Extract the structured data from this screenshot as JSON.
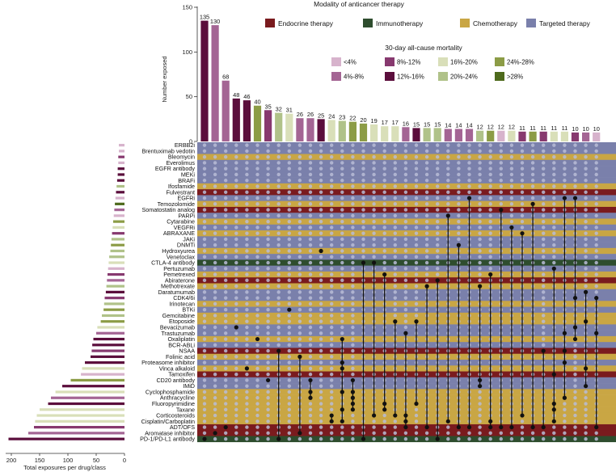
{
  "chart_data": {
    "type": "upset",
    "legend_title": "Modality of anticancer therapy",
    "mortality_title": "30-day all-cause mortality",
    "y_label": "Number exposed",
    "x_label": "Total exposures per drug/class",
    "y_ticks": [
      0,
      50,
      100,
      150
    ],
    "x_ticks": [
      200,
      150,
      100,
      50,
      0
    ],
    "colors": {
      "Endocrine therapy": "#7a1b1e",
      "Immunotherapy": "#2e4d2e",
      "Chemotherapy": "#c9a644",
      "Targeted therapy": "#7a80ab",
      "<4%": "#d7b3cc",
      "4%-8%": "#a46594",
      "8%-12%": "#87396f",
      "12%-16%": "#5b0e3c",
      "16%-20%": "#d9dfb9",
      "20%-24%": "#b0c289",
      "24%-28%": "#8c9c46",
      ">28%": "#4e6a1c",
      "dot_empty": "#b8bcd6",
      "dot_filled": "#111111"
    },
    "modality_legend": [
      "Endocrine therapy",
      "Immunotherapy",
      "Chemotherapy",
      "Targeted therapy"
    ],
    "mortality_legend": [
      "<4%",
      "8%-12%",
      "16%-20%",
      "24%-28%",
      "4%-8%",
      "12%-16%",
      "20%-24%",
      ">28%"
    ],
    "drugs": [
      {
        "name": "ERBB2i",
        "modality": "Targeted therapy",
        "total": 10,
        "bin": "<4%"
      },
      {
        "name": "Brentuximab vedotin",
        "modality": "Targeted therapy",
        "total": 10,
        "bin": "<4%"
      },
      {
        "name": "Bleomycin",
        "modality": "Chemotherapy",
        "total": 11,
        "bin": "8%-12%"
      },
      {
        "name": "Everolimus",
        "modality": "Targeted therapy",
        "total": 11,
        "bin": "<4%"
      },
      {
        "name": "EGFR antibody",
        "modality": "Targeted therapy",
        "total": 12,
        "bin": "12%-16%"
      },
      {
        "name": "MEKi",
        "modality": "Targeted therapy",
        "total": 12,
        "bin": "12%-16%"
      },
      {
        "name": "BRAFi",
        "modality": "Targeted therapy",
        "total": 13,
        "bin": "12%-16%"
      },
      {
        "name": "Ifosfamide",
        "modality": "Chemotherapy",
        "total": 14,
        "bin": "20%-24%"
      },
      {
        "name": "Fulvestrant",
        "modality": "Endocrine therapy",
        "total": 15,
        "bin": "12%-16%"
      },
      {
        "name": "EGFRi",
        "modality": "Targeted therapy",
        "total": 16,
        "bin": "<4%"
      },
      {
        "name": "Temozolomide",
        "modality": "Chemotherapy",
        "total": 17,
        "bin": ">28%"
      },
      {
        "name": "Somatostatin analog",
        "modality": "Endocrine therapy",
        "total": 18,
        "bin": "4%-8%"
      },
      {
        "name": "PARPi",
        "modality": "Targeted therapy",
        "total": 19,
        "bin": "<4%"
      },
      {
        "name": "Cytarabine",
        "modality": "Chemotherapy",
        "total": 20,
        "bin": "24%-28%"
      },
      {
        "name": "VEGFRi",
        "modality": "Targeted therapy",
        "total": 21,
        "bin": "16%-20%"
      },
      {
        "name": "ABRAXANE",
        "modality": "Chemotherapy",
        "total": 22,
        "bin": "8%-12%"
      },
      {
        "name": "JAKi",
        "modality": "Targeted therapy",
        "total": 23,
        "bin": "20%-24%"
      },
      {
        "name": "DNMTi",
        "modality": "Targeted therapy",
        "total": 24,
        "bin": "24%-28%"
      },
      {
        "name": "Hydroxyurea",
        "modality": "Chemotherapy",
        "total": 25,
        "bin": "20%-24%"
      },
      {
        "name": "Venetoclax",
        "modality": "Targeted therapy",
        "total": 27,
        "bin": "20%-24%"
      },
      {
        "name": "CTLA-4 antibody",
        "modality": "Immunotherapy",
        "total": 28,
        "bin": "16%-20%"
      },
      {
        "name": "Pertuzumab",
        "modality": "Targeted therapy",
        "total": 29,
        "bin": "<4%"
      },
      {
        "name": "Pemetrexed",
        "modality": "Chemotherapy",
        "total": 30,
        "bin": "8%-12%"
      },
      {
        "name": "Abiraterone",
        "modality": "Endocrine therapy",
        "total": 31,
        "bin": "4%-8%"
      },
      {
        "name": "Methotrexate",
        "modality": "Chemotherapy",
        "total": 32,
        "bin": "20%-24%"
      },
      {
        "name": "Daratumumab",
        "modality": "Targeted therapy",
        "total": 33,
        "bin": "12%-16%"
      },
      {
        "name": "CDK4/6i",
        "modality": "Targeted therapy",
        "total": 35,
        "bin": "8%-12%"
      },
      {
        "name": "Irinotecan",
        "modality": "Chemotherapy",
        "total": 36,
        "bin": "20%-24%"
      },
      {
        "name": "BTKi",
        "modality": "Targeted therapy",
        "total": 37,
        "bin": "24%-28%"
      },
      {
        "name": "Gemcitabine",
        "modality": "Chemotherapy",
        "total": 40,
        "bin": "20%-24%"
      },
      {
        "name": "Etoposide",
        "modality": "Chemotherapy",
        "total": 42,
        "bin": "24%-28%"
      },
      {
        "name": "Bevacizumab",
        "modality": "Targeted therapy",
        "total": 48,
        "bin": "16%-20%"
      },
      {
        "name": "Trastuzumab",
        "modality": "Targeted therapy",
        "total": 50,
        "bin": "4%-8%"
      },
      {
        "name": "Oxaliplatin",
        "modality": "Chemotherapy",
        "total": 55,
        "bin": "12%-16%"
      },
      {
        "name": "BCR-ABLi",
        "modality": "Targeted therapy",
        "total": 57,
        "bin": "12%-16%"
      },
      {
        "name": "NSAA",
        "modality": "Endocrine therapy",
        "total": 58,
        "bin": "8%-12%"
      },
      {
        "name": "Folinic acid",
        "modality": "Chemotherapy",
        "total": 60,
        "bin": "12%-16%"
      },
      {
        "name": "Proteasome inhibitor",
        "modality": "Targeted therapy",
        "total": 70,
        "bin": "12%-16%"
      },
      {
        "name": "Vinca alkaloid",
        "modality": "Chemotherapy",
        "total": 75,
        "bin": "16%-20%"
      },
      {
        "name": "Tamoxifen",
        "modality": "Endocrine therapy",
        "total": 77,
        "bin": "<4%"
      },
      {
        "name": "CD20 antibody",
        "modality": "Targeted therapy",
        "total": 95,
        "bin": "24%-28%"
      },
      {
        "name": "IMiD",
        "modality": "Targeted therapy",
        "total": 110,
        "bin": "12%-16%"
      },
      {
        "name": "Cyclophosphamide",
        "modality": "Chemotherapy",
        "total": 122,
        "bin": "16%-20%"
      },
      {
        "name": "Anthracycline",
        "modality": "Chemotherapy",
        "total": 130,
        "bin": "4%-8%"
      },
      {
        "name": "Fluoropyrimidine",
        "modality": "Chemotherapy",
        "total": 135,
        "bin": "12%-16%"
      },
      {
        "name": "Taxane",
        "modality": "Chemotherapy",
        "total": 150,
        "bin": "16%-20%"
      },
      {
        "name": "Corticosteroids",
        "modality": "Chemotherapy",
        "total": 155,
        "bin": "16%-20%"
      },
      {
        "name": "Cisplatin/Carboplatin",
        "modality": "Chemotherapy",
        "total": 158,
        "bin": "16%-20%"
      },
      {
        "name": "ADT/OFS",
        "modality": "Endocrine therapy",
        "total": 160,
        "bin": "8%-12%"
      },
      {
        "name": "Aromatase inhibitor",
        "modality": "Endocrine therapy",
        "total": 170,
        "bin": "4%-8%"
      },
      {
        "name": "PD-1/PD-L1 antibody",
        "modality": "Immunotherapy",
        "total": 205,
        "bin": "12%-16%"
      }
    ],
    "combinations": [
      {
        "count": 135,
        "bin": "12%-16%",
        "members": [
          50
        ]
      },
      {
        "count": 130,
        "bin": "4%-8%",
        "members": [
          49
        ]
      },
      {
        "count": 68,
        "bin": "4%-8%",
        "members": [
          48
        ]
      },
      {
        "count": 48,
        "bin": "12%-16%",
        "members": [
          31
        ]
      },
      {
        "count": 46,
        "bin": "12%-16%",
        "members": [
          38
        ]
      },
      {
        "count": 40,
        "bin": "24%-28%",
        "members": [
          33
        ]
      },
      {
        "count": 35,
        "bin": "8%-12%",
        "members": [
          40
        ]
      },
      {
        "count": 32,
        "bin": "20%-24%",
        "members": [
          35,
          50
        ]
      },
      {
        "count": 31,
        "bin": "16%-20%",
        "members": [
          28
        ]
      },
      {
        "count": 26,
        "bin": "4%-8%",
        "members": [
          36,
          49
        ]
      },
      {
        "count": 26,
        "bin": "4%-8%",
        "members": [
          40,
          42,
          43
        ]
      },
      {
        "count": 25,
        "bin": "12%-16%",
        "members": [
          18
        ]
      },
      {
        "count": 24,
        "bin": "16%-20%",
        "members": [
          46,
          47
        ]
      },
      {
        "count": 23,
        "bin": "20%-24%",
        "members": [
          33,
          37,
          38,
          42,
          45,
          47
        ]
      },
      {
        "count": 22,
        "bin": "24%-28%",
        "members": [
          40,
          42,
          43,
          44,
          45
        ]
      },
      {
        "count": 20,
        "bin": "24%-28%",
        "members": [
          20,
          50
        ]
      },
      {
        "count": 19,
        "bin": "16%-20%",
        "members": [
          20,
          46
        ]
      },
      {
        "count": 17,
        "bin": "16%-20%",
        "members": [
          22,
          44,
          45
        ]
      },
      {
        "count": 17,
        "bin": "16%-20%",
        "members": [
          30,
          46
        ]
      },
      {
        "count": 16,
        "bin": "4%-8%",
        "members": [
          32,
          46,
          47,
          48
        ]
      },
      {
        "count": 15,
        "bin": "12%-16%",
        "members": [
          30,
          44
        ]
      },
      {
        "count": 15,
        "bin": "20%-24%",
        "members": [
          24,
          48
        ]
      },
      {
        "count": 15,
        "bin": "20%-24%",
        "members": [
          23,
          50
        ]
      },
      {
        "count": 14,
        "bin": "4%-8%",
        "members": [
          12,
          47
        ]
      },
      {
        "count": 14,
        "bin": "4%-8%",
        "members": [
          17,
          48
        ]
      },
      {
        "count": 14,
        "bin": "4%-8%",
        "members": [
          9,
          48
        ]
      },
      {
        "count": 12,
        "bin": "20%-24%",
        "members": [
          24,
          40,
          41
        ]
      },
      {
        "count": 12,
        "bin": "24%-28%",
        "members": [
          22,
          47,
          48
        ]
      },
      {
        "count": 12,
        "bin": "<4%",
        "members": [
          11,
          48
        ]
      },
      {
        "count": 12,
        "bin": "16%-20%",
        "members": [
          14,
          48
        ]
      },
      {
        "count": 11,
        "bin": "8%-12%",
        "members": [
          15,
          46
        ]
      },
      {
        "count": 11,
        "bin": "24%-28%",
        "members": [
          10,
          48
        ]
      },
      {
        "count": 11,
        "bin": "8%-12%",
        "members": [
          35,
          48
        ]
      },
      {
        "count": 11,
        "bin": "16%-20%",
        "members": [
          21,
          39,
          44,
          45,
          47
        ]
      },
      {
        "count": 11,
        "bin": "16%-20%",
        "members": [
          9,
          32,
          35,
          37,
          43
        ]
      },
      {
        "count": 10,
        "bin": "8%-12%",
        "members": [
          9,
          26,
          31,
          33
        ]
      },
      {
        "count": 10,
        "bin": "4%-8%",
        "members": [
          25,
          30,
          38,
          41
        ]
      },
      {
        "count": 10,
        "bin": "<4%",
        "members": [
          26,
          32,
          48
        ]
      }
    ],
    "xlabel": "Total exposures per drug/class",
    "ylabel": "Number exposed",
    "ylim": [
      0,
      150
    ],
    "xlim": [
      210,
      0
    ]
  }
}
